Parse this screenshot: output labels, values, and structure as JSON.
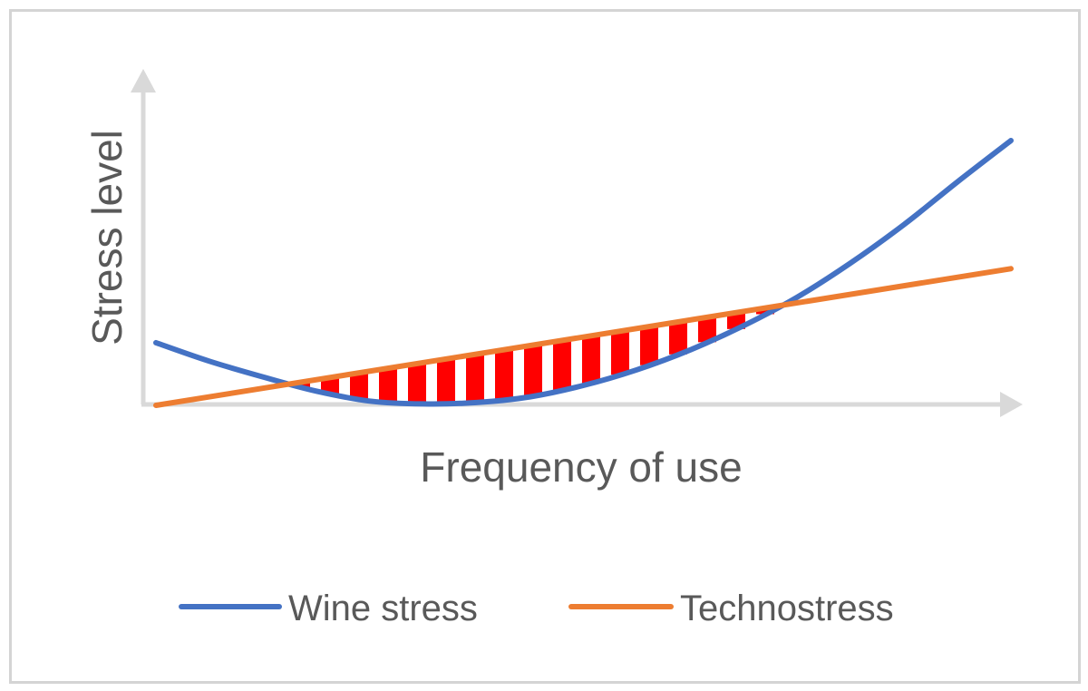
{
  "chart_data": {
    "type": "line",
    "title": "",
    "xlabel": "Frequency of use",
    "ylabel": "Stress level",
    "ticks_shown": false,
    "grid": false,
    "legend_position": "bottom",
    "shaded_region": {
      "between": [
        "Wine stress",
        "Technostress"
      ],
      "pattern": "vertical red stripes",
      "color": "#ff0000"
    },
    "series": [
      {
        "name": "Wine stress",
        "color": "#4472c4",
        "x": [
          0,
          1,
          2,
          3,
          4,
          5,
          6,
          7,
          8,
          9,
          10,
          11,
          12,
          13,
          14,
          15,
          16
        ],
        "y": [
          2.2,
          1.55,
          1.0,
          0.5,
          0.15,
          0.05,
          0.1,
          0.3,
          0.7,
          1.25,
          1.95,
          2.8,
          3.8,
          5.0,
          6.35,
          7.85,
          9.3
        ]
      },
      {
        "name": "Technostress",
        "color": "#ed7d31",
        "x": [
          0,
          16
        ],
        "y": [
          0.0,
          4.8
        ]
      }
    ]
  }
}
